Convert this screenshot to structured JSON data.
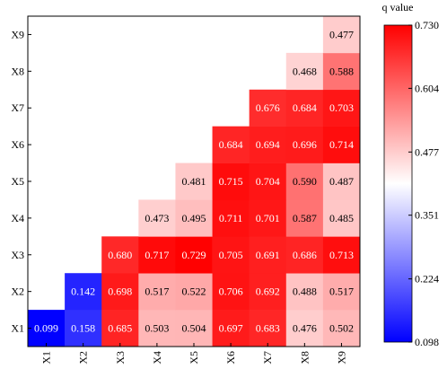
{
  "chart_data": {
    "type": "heatmap",
    "x_categories": [
      "X1",
      "X2",
      "X3",
      "X4",
      "X5",
      "X6",
      "X7",
      "X8",
      "X9"
    ],
    "y_categories": [
      "X1",
      "X2",
      "X3",
      "X4",
      "X5",
      "X6",
      "X7",
      "X8",
      "X9"
    ],
    "cells": [
      {
        "x": "X1",
        "y": "X1",
        "value": 0.099,
        "label": "0.099"
      },
      {
        "x": "X2",
        "y": "X1",
        "value": 0.158,
        "label": "0.158"
      },
      {
        "x": "X3",
        "y": "X1",
        "value": 0.685,
        "label": "0.685"
      },
      {
        "x": "X4",
        "y": "X1",
        "value": 0.503,
        "label": "0.503"
      },
      {
        "x": "X5",
        "y": "X1",
        "value": 0.504,
        "label": "0.504"
      },
      {
        "x": "X6",
        "y": "X1",
        "value": 0.697,
        "label": "0.697"
      },
      {
        "x": "X7",
        "y": "X1",
        "value": 0.683,
        "label": "0.683"
      },
      {
        "x": "X8",
        "y": "X1",
        "value": 0.476,
        "label": "0.476"
      },
      {
        "x": "X9",
        "y": "X1",
        "value": 0.502,
        "label": "0.502"
      },
      {
        "x": "X2",
        "y": "X2",
        "value": 0.142,
        "label": "0.142"
      },
      {
        "x": "X3",
        "y": "X2",
        "value": 0.698,
        "label": "0.698"
      },
      {
        "x": "X4",
        "y": "X2",
        "value": 0.517,
        "label": "0.517"
      },
      {
        "x": "X5",
        "y": "X2",
        "value": 0.522,
        "label": "0.522"
      },
      {
        "x": "X6",
        "y": "X2",
        "value": 0.706,
        "label": "0.706"
      },
      {
        "x": "X7",
        "y": "X2",
        "value": 0.692,
        "label": "0.692"
      },
      {
        "x": "X8",
        "y": "X2",
        "value": 0.488,
        "label": "0.488"
      },
      {
        "x": "X9",
        "y": "X2",
        "value": 0.517,
        "label": "0.517"
      },
      {
        "x": "X3",
        "y": "X3",
        "value": 0.68,
        "label": "0.680"
      },
      {
        "x": "X4",
        "y": "X3",
        "value": 0.717,
        "label": "0.717"
      },
      {
        "x": "X5",
        "y": "X3",
        "value": 0.729,
        "label": "0.729"
      },
      {
        "x": "X6",
        "y": "X3",
        "value": 0.705,
        "label": "0.705"
      },
      {
        "x": "X7",
        "y": "X3",
        "value": 0.691,
        "label": "0.691"
      },
      {
        "x": "X8",
        "y": "X3",
        "value": 0.686,
        "label": "0.686"
      },
      {
        "x": "X9",
        "y": "X3",
        "value": 0.713,
        "label": "0.713"
      },
      {
        "x": "X4",
        "y": "X4",
        "value": 0.473,
        "label": "0.473"
      },
      {
        "x": "X5",
        "y": "X4",
        "value": 0.495,
        "label": "0.495"
      },
      {
        "x": "X6",
        "y": "X4",
        "value": 0.711,
        "label": "0.711"
      },
      {
        "x": "X7",
        "y": "X4",
        "value": 0.701,
        "label": "0.701"
      },
      {
        "x": "X8",
        "y": "X4",
        "value": 0.587,
        "label": "0.587"
      },
      {
        "x": "X9",
        "y": "X4",
        "value": 0.485,
        "label": "0.485"
      },
      {
        "x": "X5",
        "y": "X5",
        "value": 0.481,
        "label": "0.481"
      },
      {
        "x": "X6",
        "y": "X5",
        "value": 0.715,
        "label": "0.715"
      },
      {
        "x": "X7",
        "y": "X5",
        "value": 0.704,
        "label": "0.704"
      },
      {
        "x": "X8",
        "y": "X5",
        "value": 0.59,
        "label": "0.590"
      },
      {
        "x": "X9",
        "y": "X5",
        "value": 0.487,
        "label": "0.487"
      },
      {
        "x": "X6",
        "y": "X6",
        "value": 0.684,
        "label": "0.684"
      },
      {
        "x": "X7",
        "y": "X6",
        "value": 0.694,
        "label": "0.694"
      },
      {
        "x": "X8",
        "y": "X6",
        "value": 0.696,
        "label": "0.696"
      },
      {
        "x": "X9",
        "y": "X6",
        "value": 0.714,
        "label": "0.714"
      },
      {
        "x": "X7",
        "y": "X7",
        "value": 0.676,
        "label": "0.676"
      },
      {
        "x": "X8",
        "y": "X7",
        "value": 0.684,
        "label": "0.684"
      },
      {
        "x": "X9",
        "y": "X7",
        "value": 0.703,
        "label": "0.703"
      },
      {
        "x": "X8",
        "y": "X8",
        "value": 0.468,
        "label": "0.468"
      },
      {
        "x": "X9",
        "y": "X8",
        "value": 0.588,
        "label": "0.588"
      },
      {
        "x": "X9",
        "y": "X9",
        "value": 0.477,
        "label": "0.477"
      }
    ],
    "colorbar": {
      "title": "q value",
      "min": 0.098,
      "max": 0.73,
      "ticks": [
        "0.730",
        "0.604",
        "0.477",
        "0.351",
        "0.224",
        "0.098"
      ],
      "low_color": "#0000ff",
      "mid_color": "#ffffff",
      "high_color": "#ff0000"
    },
    "grid": false
  }
}
